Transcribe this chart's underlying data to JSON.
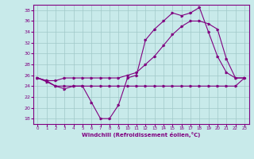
{
  "title": "",
  "xlabel": "Windchill (Refroidissement éolien,°C)",
  "ylabel": "",
  "bg_color": "#c8eaea",
  "line_color": "#800080",
  "grid_color": "#a0c8c8",
  "xlim": [
    -0.5,
    23.5
  ],
  "ylim": [
    17,
    39
  ],
  "yticks": [
    18,
    20,
    22,
    24,
    26,
    28,
    30,
    32,
    34,
    36,
    38
  ],
  "xticks": [
    0,
    1,
    2,
    3,
    4,
    5,
    6,
    7,
    8,
    9,
    10,
    11,
    12,
    13,
    14,
    15,
    16,
    17,
    18,
    19,
    20,
    21,
    22,
    23
  ],
  "series1_x": [
    0,
    1,
    2,
    3,
    4,
    5,
    6,
    7,
    8,
    9,
    10,
    11,
    12,
    13,
    14,
    15,
    16,
    17,
    18,
    19,
    20,
    21,
    22,
    23
  ],
  "series1_y": [
    25.5,
    24.8,
    24.0,
    23.5,
    24.0,
    24.0,
    21.0,
    18.0,
    18.0,
    20.5,
    25.5,
    26.0,
    32.5,
    34.5,
    36.0,
    37.5,
    37.0,
    37.5,
    38.5,
    34.0,
    29.5,
    26.5,
    25.5,
    25.5
  ],
  "series2_x": [
    0,
    1,
    2,
    3,
    4,
    5,
    6,
    7,
    8,
    9,
    10,
    11,
    12,
    13,
    14,
    15,
    16,
    17,
    18,
    19,
    20,
    21,
    22,
    23
  ],
  "series2_y": [
    25.5,
    25.0,
    24.0,
    24.0,
    24.0,
    24.0,
    24.0,
    24.0,
    24.0,
    24.0,
    24.0,
    24.0,
    24.0,
    24.0,
    24.0,
    24.0,
    24.0,
    24.0,
    24.0,
    24.0,
    24.0,
    24.0,
    24.0,
    25.5
  ],
  "series3_x": [
    0,
    1,
    2,
    3,
    4,
    5,
    6,
    7,
    8,
    9,
    10,
    11,
    12,
    13,
    14,
    15,
    16,
    17,
    18,
    19,
    20,
    21,
    22,
    23
  ],
  "series3_y": [
    25.5,
    25.0,
    25.0,
    25.5,
    25.5,
    25.5,
    25.5,
    25.5,
    25.5,
    25.5,
    26.0,
    26.5,
    28.0,
    29.5,
    31.5,
    33.5,
    35.0,
    36.0,
    36.0,
    35.5,
    34.5,
    29.0,
    25.5,
    25.5
  ]
}
